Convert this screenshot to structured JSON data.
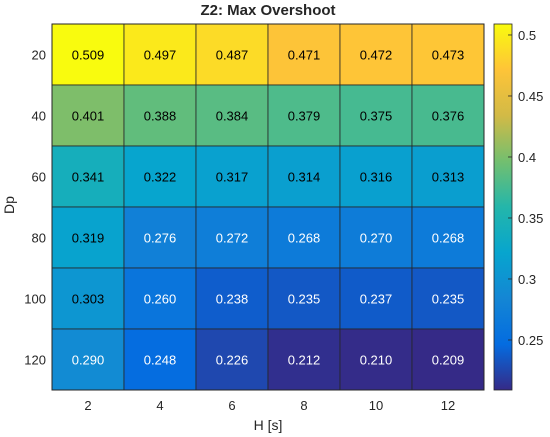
{
  "chart_data": {
    "type": "heatmap",
    "title": "Z2: Max Overshoot",
    "xlabel": "H [s]",
    "ylabel": "Dp",
    "x": [
      "2",
      "4",
      "6",
      "8",
      "10",
      "12"
    ],
    "y": [
      "20",
      "40",
      "60",
      "80",
      "100",
      "120"
    ],
    "values": [
      [
        0.509,
        0.497,
        0.487,
        0.471,
        0.472,
        0.473
      ],
      [
        0.401,
        0.388,
        0.384,
        0.379,
        0.375,
        0.376
      ],
      [
        0.341,
        0.322,
        0.317,
        0.314,
        0.316,
        0.313
      ],
      [
        0.319,
        0.276,
        0.272,
        0.268,
        0.27,
        0.268
      ],
      [
        0.303,
        0.26,
        0.238,
        0.235,
        0.237,
        0.235
      ],
      [
        0.29,
        0.248,
        0.226,
        0.212,
        0.21,
        0.209
      ]
    ],
    "value_labels": [
      [
        "0.509",
        "0.497",
        "0.487",
        "0.471",
        "0.472",
        "0.473"
      ],
      [
        "0.401",
        "0.388",
        "0.384",
        "0.379",
        "0.375",
        "0.376"
      ],
      [
        "0.341",
        "0.322",
        "0.317",
        "0.314",
        "0.316",
        "0.313"
      ],
      [
        "0.319",
        "0.276",
        "0.272",
        "0.268",
        "0.270",
        "0.268"
      ],
      [
        "0.303",
        "0.260",
        "0.238",
        "0.235",
        "0.237",
        "0.235"
      ],
      [
        "0.290",
        "0.248",
        "0.226",
        "0.212",
        "0.210",
        "0.209"
      ]
    ],
    "colorbar": {
      "colormap": "parula",
      "range": [
        0.209,
        0.509
      ],
      "ticks": [
        0.25,
        0.3,
        0.35,
        0.4,
        0.45,
        0.5
      ],
      "tick_labels": [
        "0.25",
        "0.3",
        "0.35",
        "0.4",
        "0.45",
        "0.5"
      ],
      "position": "right"
    }
  }
}
